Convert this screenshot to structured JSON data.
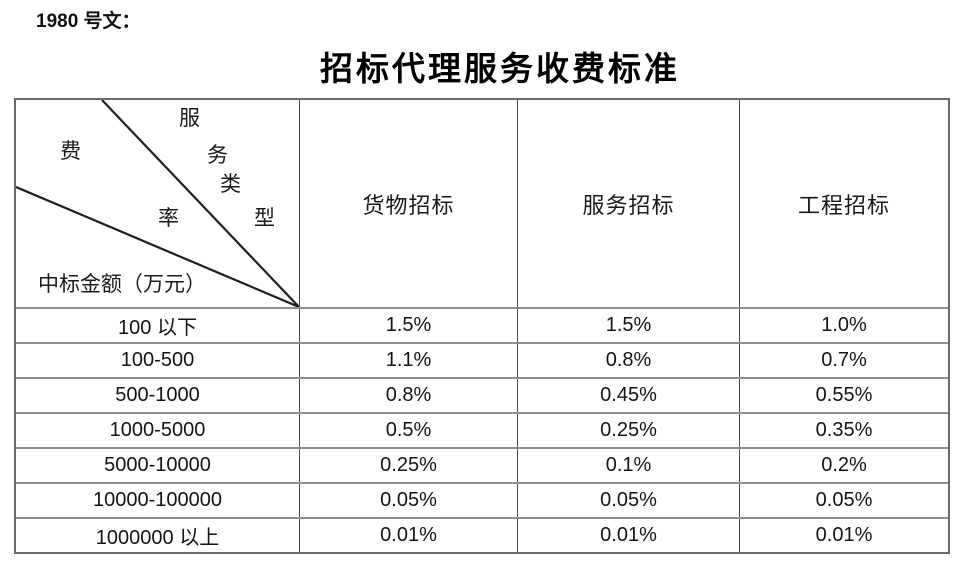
{
  "page": {
    "doc_label": "1980 号文：",
    "title": "招标代理服务收费标准"
  },
  "table": {
    "corner": {
      "upper": [
        "服",
        "务",
        "类",
        "型"
      ],
      "lower": [
        "费",
        "率"
      ],
      "bottom_label": "中标金额（万元）"
    },
    "columns": [
      "货物招标",
      "服务招标",
      "工程招标"
    ],
    "rows": [
      {
        "range": "100 以下",
        "values": [
          "1.5%",
          "1.5%",
          "1.0%"
        ]
      },
      {
        "range": "100-500",
        "values": [
          "1.1%",
          "0.8%",
          "0.7%"
        ]
      },
      {
        "range": "500-1000",
        "values": [
          "0.8%",
          "0.45%",
          "0.55%"
        ]
      },
      {
        "range": "1000-5000",
        "values": [
          "0.5%",
          "0.25%",
          "0.35%"
        ]
      },
      {
        "range": "5000-10000",
        "values": [
          "0.25%",
          "0.1%",
          "0.2%"
        ]
      },
      {
        "range": "10000-100000",
        "values": [
          "0.05%",
          "0.05%",
          "0.05%"
        ]
      },
      {
        "range": "1000000 以上",
        "values": [
          "0.01%",
          "0.01%",
          "0.01%"
        ]
      }
    ]
  },
  "style": {
    "grid_line_color": "#8f8f8f",
    "outer_border_color": "#6a6a6a",
    "diagonal_line_color": "#1f1f1f"
  }
}
